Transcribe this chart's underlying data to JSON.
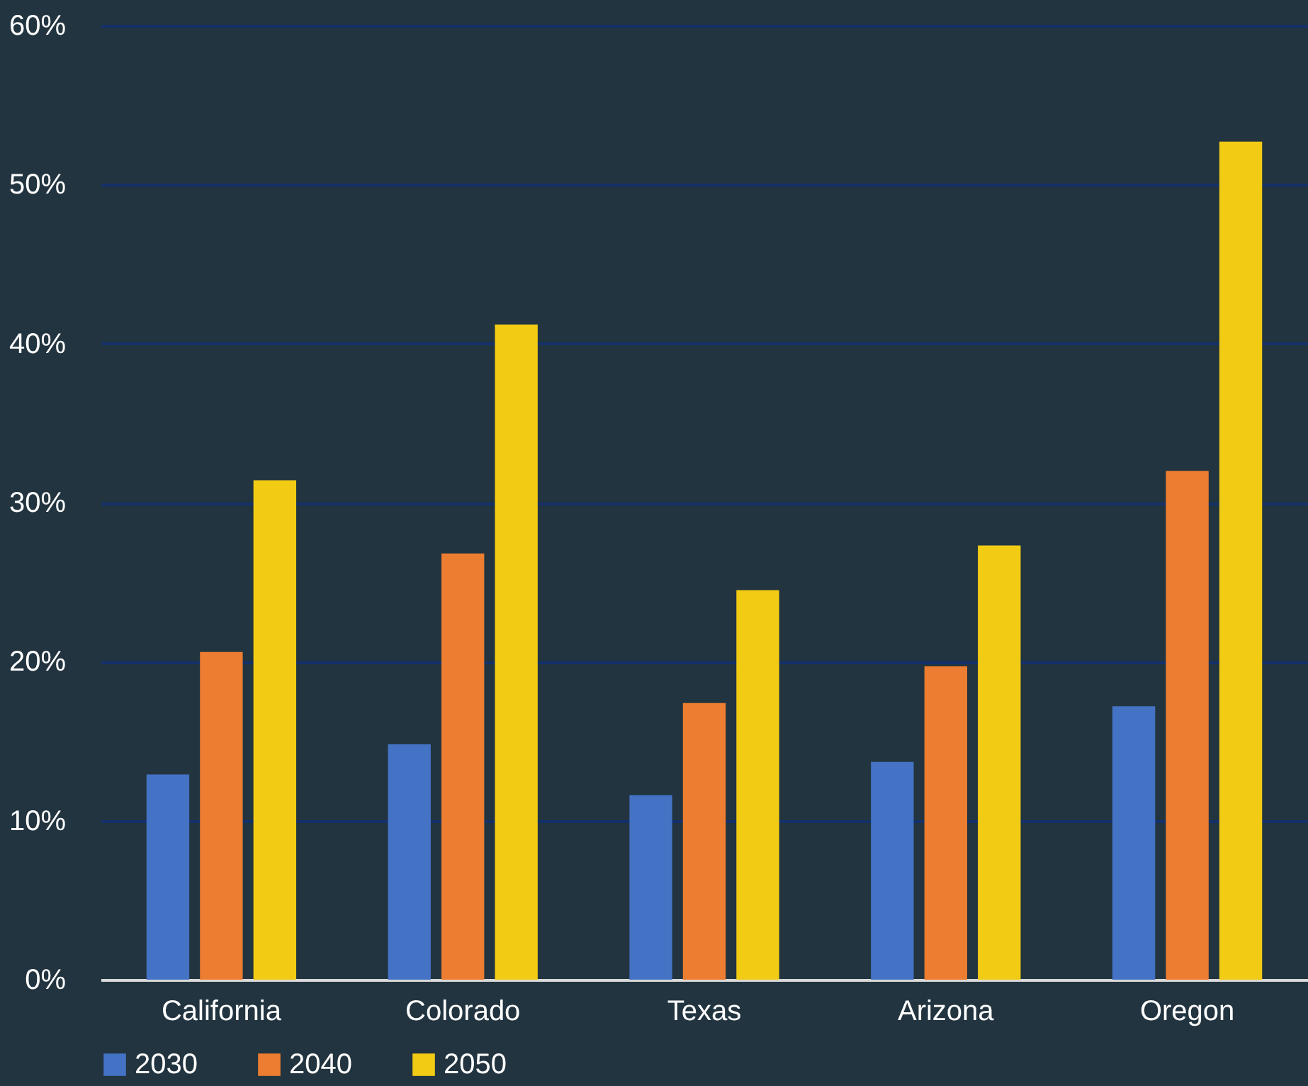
{
  "chart_data": {
    "type": "bar",
    "categories": [
      "California",
      "Colorado",
      "Texas",
      "Arizona",
      "Oregon"
    ],
    "series": [
      {
        "name": "2030",
        "color": "#4472c4",
        "values": [
          12.9,
          14.8,
          11.6,
          13.7,
          17.2
        ]
      },
      {
        "name": "2040",
        "color": "#ed7d31",
        "values": [
          20.6,
          26.8,
          17.4,
          19.7,
          32.0
        ]
      },
      {
        "name": "2050",
        "color": "#f2cb14",
        "values": [
          31.4,
          41.2,
          24.5,
          27.3,
          52.7
        ]
      }
    ],
    "ylim": [
      0,
      60
    ],
    "yticks": [
      {
        "value": 0,
        "label": "0%"
      },
      {
        "value": 10,
        "label": "10%"
      },
      {
        "value": 20,
        "label": "20%"
      },
      {
        "value": 30,
        "label": "30%"
      },
      {
        "value": 40,
        "label": "40%"
      },
      {
        "value": 50,
        "label": "50%"
      },
      {
        "value": 60,
        "label": "60%"
      }
    ],
    "grid": "y",
    "legend": "bottom"
  }
}
